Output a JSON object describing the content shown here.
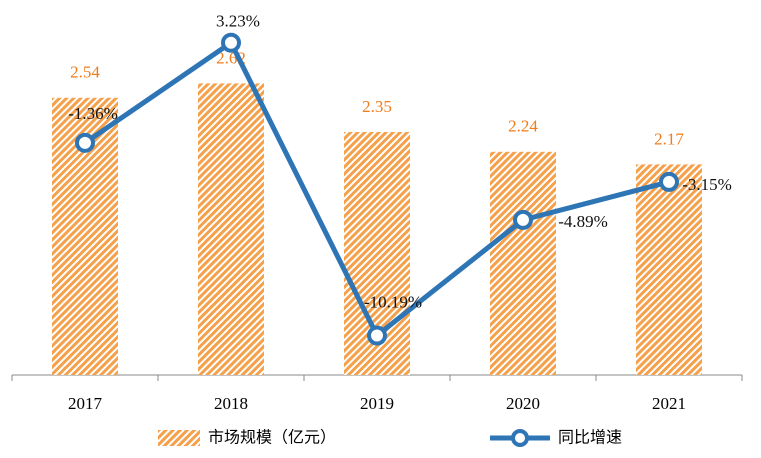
{
  "chart_data": {
    "type": "bar",
    "categories": [
      "2017",
      "2018",
      "2019",
      "2020",
      "2021"
    ],
    "series": [
      {
        "name": "市场规模（亿元）",
        "type": "bar",
        "color": "#f5a04a",
        "values": [
          2.54,
          2.62,
          2.35,
          2.24,
          2.17
        ]
      },
      {
        "name": "同比增速",
        "type": "line",
        "axis": "y2",
        "color": "#2e75b6",
        "values": [
          -1.36,
          3.23,
          -10.19,
          -4.89,
          -3.15
        ],
        "value_labels": [
          "-1.36%",
          "3.23%",
          "-10.19%",
          "-4.89%",
          "-3.15%"
        ]
      }
    ],
    "ylim": [
      1.0,
      3.0
    ],
    "y2lim": [
      -12,
      4.5
    ],
    "legend": "bottom"
  }
}
